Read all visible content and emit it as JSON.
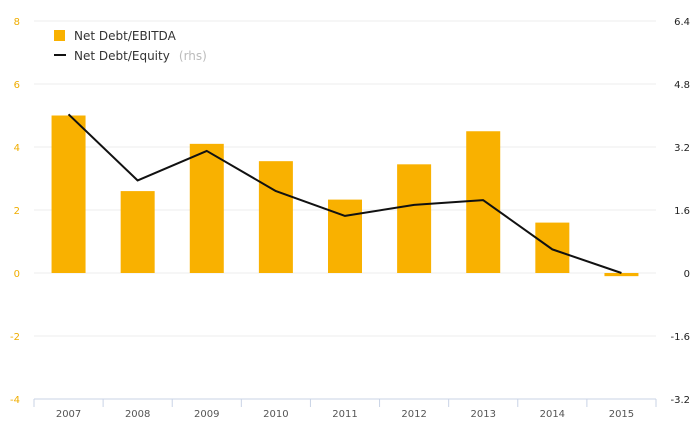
{
  "chart_data": {
    "type": "bar",
    "categories": [
      "2007",
      "2008",
      "2009",
      "2010",
      "2011",
      "2012",
      "2013",
      "2014",
      "2015"
    ],
    "series": [
      {
        "name": "Net Debt/EBITDA",
        "type": "bar",
        "axis": "left",
        "color": "#f9b100",
        "values": [
          5.0,
          2.6,
          4.1,
          3.55,
          2.33,
          3.45,
          4.5,
          1.6,
          -0.1
        ]
      },
      {
        "name": "Net Debt/Equity",
        "name_suffix": "(rhs)",
        "type": "line",
        "axis": "right",
        "color": "#111111",
        "values": [
          4.03,
          2.35,
          3.1,
          2.08,
          1.45,
          1.73,
          1.85,
          0.6,
          0.0
        ]
      }
    ],
    "y_left": {
      "ticks": [
        "-4",
        "-2",
        "0",
        "2",
        "4",
        "6",
        "8"
      ],
      "lim": [
        -4,
        8
      ]
    },
    "y_right": {
      "ticks": [
        "-3.2",
        "-1.6",
        "0",
        "1.6",
        "3.2",
        "4.8",
        "6.4"
      ],
      "lim": [
        -3.2,
        6.4
      ]
    },
    "grid": true,
    "legend_position": "top-left",
    "title": "",
    "xlabel": "",
    "ylabel": ""
  }
}
